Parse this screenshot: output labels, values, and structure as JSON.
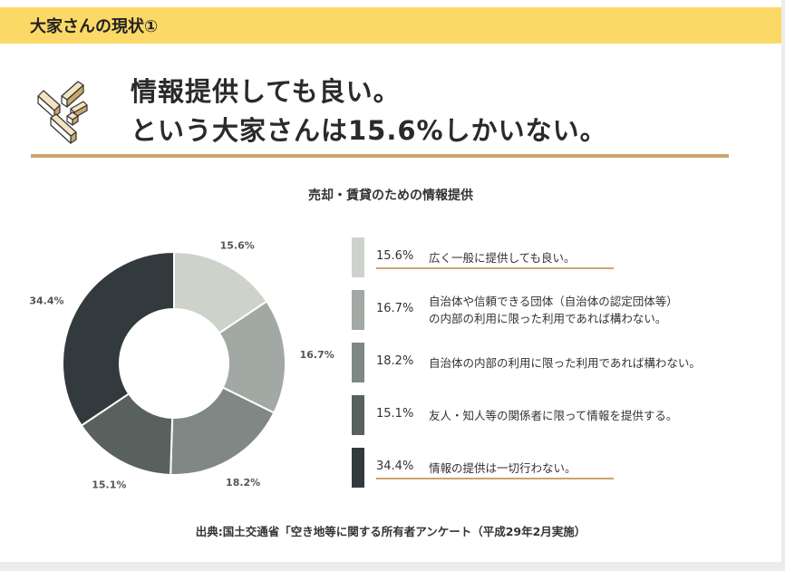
{
  "header": {
    "title": "大家さんの現状①"
  },
  "headline": {
    "line1": "情報提供しても良い。",
    "line2": "という大家さんは15.6%しかいない。"
  },
  "logo_icon": "pencil-blocks-icon",
  "colors": {
    "header_bg": "#fcd966",
    "accent_rule": "#c9a66b",
    "slice_colors": [
      "#cdd2cb",
      "#a2a8a4",
      "#7f8884",
      "#59615f",
      "#323a3e"
    ]
  },
  "chart_data": {
    "type": "pie",
    "title": "売却・賃貸のための情報提供",
    "donut": true,
    "categories": [
      "広く一般に提供しても良い。",
      "自治体や信頼できる団体（自治体の認定団体等）の内部の利用に限った利用であれば構わない。",
      "自治体の内部の利用に限った利用であれば構わない。",
      "友人・知人等の関係者に限って情報を提供する。",
      "情報の提供は一切行わない。"
    ],
    "values": [
      15.6,
      16.7,
      18.2,
      15.1,
      34.4
    ],
    "data_labels": [
      "15.6%",
      "16.7%",
      "18.2%",
      "15.1%",
      "34.4%"
    ],
    "legend_placement": "right"
  },
  "legend": [
    {
      "pct": "15.6%",
      "text_lines": [
        "広く一般に提供しても良い。"
      ],
      "underlined": true
    },
    {
      "pct": "16.7%",
      "text_lines": [
        "自治体や信頼できる団体（自治体の認定団体等）",
        "の内部の利用に限った利用であれば構わない。"
      ],
      "underlined": false
    },
    {
      "pct": "18.2%",
      "text_lines": [
        "自治体の内部の利用に限った利用であれば構わない。"
      ],
      "underlined": false
    },
    {
      "pct": "15.1%",
      "text_lines": [
        "友人・知人等の関係者に限って情報を提供する。"
      ],
      "underlined": false
    },
    {
      "pct": "34.4%",
      "text_lines": [
        "情報の提供は一切行わない。"
      ],
      "underlined": true
    }
  ],
  "source": "出典:国土交通省「空き地等に関する所有者アンケート（平成29年2月実施）"
}
